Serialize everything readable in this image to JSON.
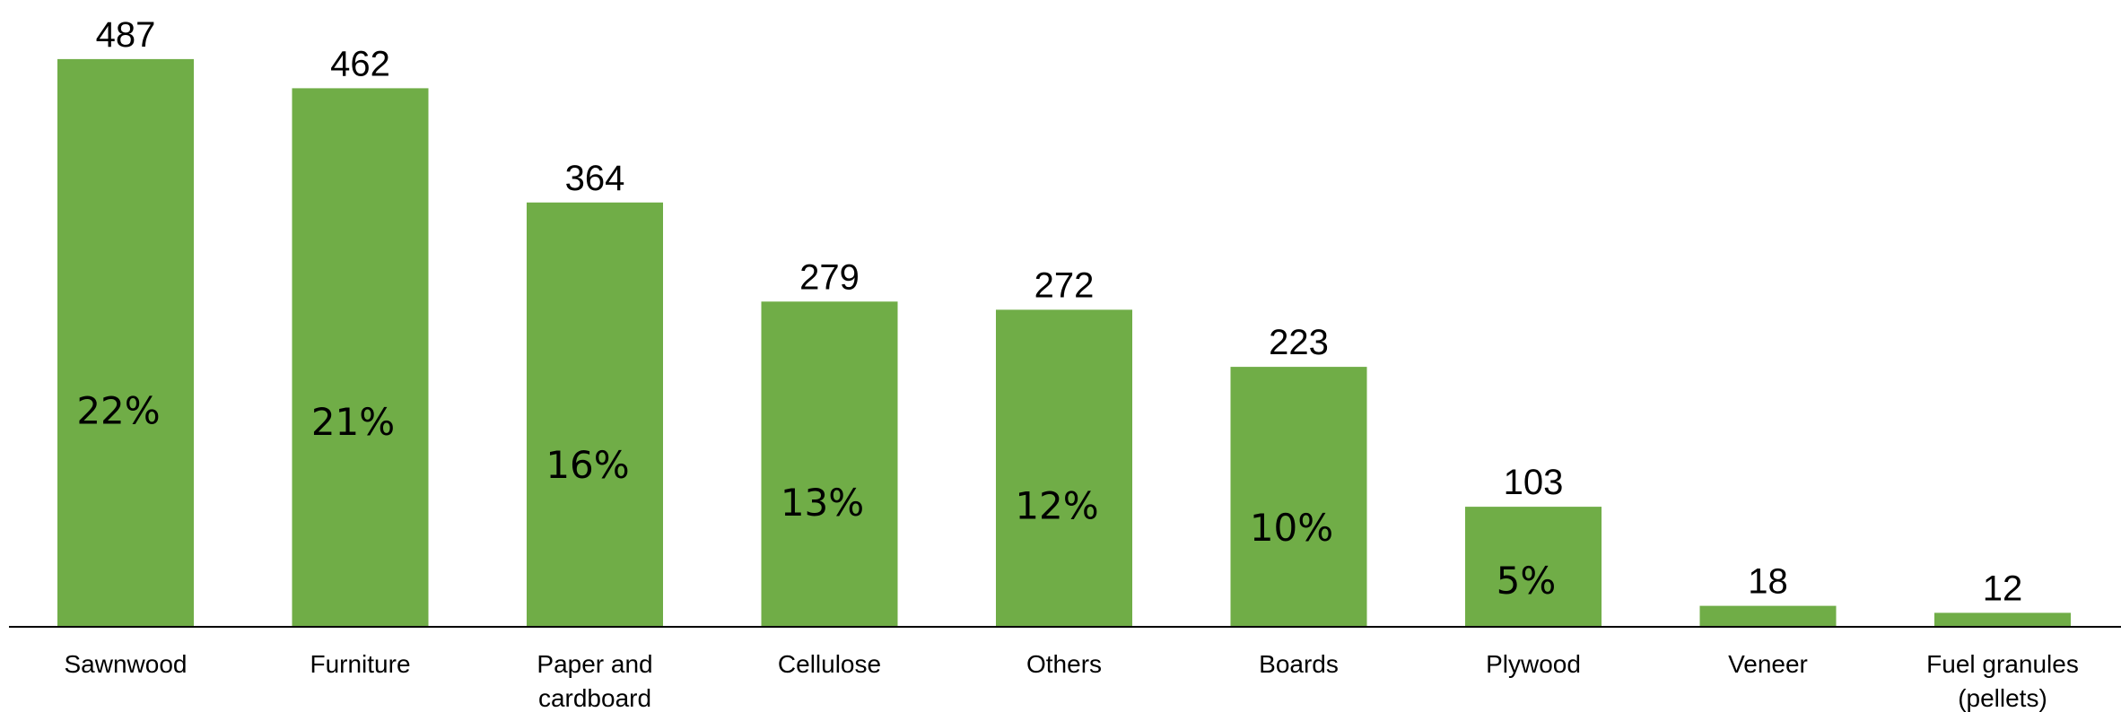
{
  "chart_data": {
    "type": "bar",
    "title": "",
    "xlabel": "",
    "ylabel": "",
    "ylim": [
      0,
      500
    ],
    "grid": false,
    "legend": "none",
    "bar_color": "#70AD47",
    "axis_color": "#000000",
    "categories": [
      [
        "Sawnwood"
      ],
      [
        "Furniture"
      ],
      [
        "Paper and",
        "cardboard"
      ],
      [
        "Cellulose"
      ],
      [
        "Others"
      ],
      [
        "Boards"
      ],
      [
        "Plywood"
      ],
      [
        "Veneer"
      ],
      [
        "Fuel granules",
        "(pellets)"
      ]
    ],
    "values": [
      487,
      462,
      364,
      279,
      272,
      223,
      103,
      18,
      12
    ],
    "value_labels": [
      "487",
      "462",
      "364",
      "279",
      "272",
      "223",
      "103",
      "18",
      "12"
    ],
    "percent_labels": [
      "22%",
      "21%",
      "16%",
      "13%",
      "12%",
      "10%",
      "5%",
      "",
      ""
    ]
  }
}
